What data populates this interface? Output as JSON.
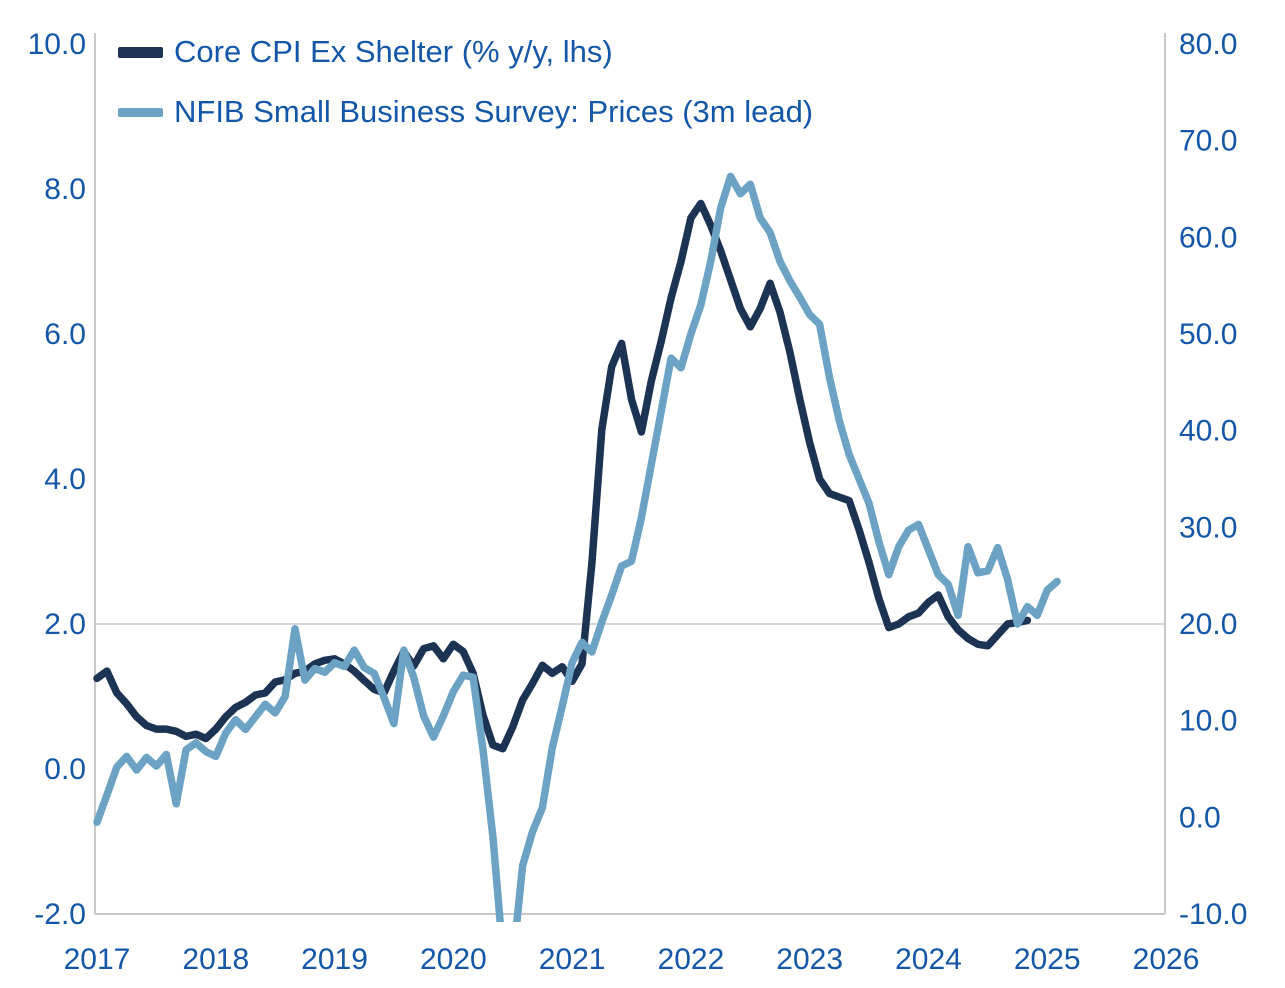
{
  "chart": {
    "background": "#ffffff",
    "legend": [
      {
        "label": "Core CPI Ex Shelter (% y/y, lhs)",
        "color": "#1d3354"
      },
      {
        "label": "NFIB Small Business Survey: Prices (3m lead)",
        "color": "#6ca3c4"
      }
    ],
    "text_color": "#1457a8",
    "grid_color": "#c8c8c8"
  },
  "chart_data": {
    "type": "line",
    "title": "",
    "xlabel": "",
    "ylabel_left": "Core CPI Ex Shelter (% y/y)",
    "ylabel_right": "NFIB Small Business Survey: Prices",
    "x_start": "2017-01",
    "x_freq": "monthly",
    "x_tick_labels": [
      "2017",
      "2018",
      "2019",
      "2020",
      "2021",
      "2022",
      "2023",
      "2024",
      "2025",
      "2026"
    ],
    "axes": {
      "left": {
        "min": -2,
        "max": 10,
        "tick_values": [
          10,
          8,
          6,
          4,
          2,
          0,
          -2
        ],
        "tick_labels": [
          "10.0",
          "8.0",
          "6.0",
          "4.0",
          "2.0",
          "0.0",
          "-2.0"
        ]
      },
      "right": {
        "min": -10,
        "max": 80,
        "tick_values": [
          80,
          70,
          60,
          50,
          40,
          30,
          20,
          10,
          0,
          -10
        ],
        "tick_labels": [
          "80.0",
          "70.0",
          "60.0",
          "50.0",
          "40.0",
          "30.0",
          "20.0",
          "10.0",
          "0.0",
          "-10.0"
        ]
      },
      "x": {
        "min_year": 2017,
        "max_year": 2026
      }
    },
    "grid": "single horizontal gridline at left 2.0 / right 20.0",
    "gridline_at_left_value": 2.0,
    "legend_position": "top-left",
    "series": [
      {
        "name": "Core CPI Ex Shelter (% y/y, lhs)",
        "axis": "left",
        "color": "#1d3354",
        "values": [
          1.25,
          1.35,
          1.05,
          0.9,
          0.72,
          0.6,
          0.55,
          0.55,
          0.52,
          0.45,
          0.48,
          0.42,
          0.55,
          0.72,
          0.85,
          0.92,
          1.02,
          1.05,
          1.2,
          1.23,
          1.32,
          1.35,
          1.45,
          1.5,
          1.52,
          1.45,
          1.35,
          1.22,
          1.1,
          1.05,
          1.35,
          1.62,
          1.42,
          1.66,
          1.7,
          1.52,
          1.72,
          1.62,
          1.32,
          0.74,
          0.33,
          0.28,
          0.58,
          0.95,
          1.18,
          1.43,
          1.32,
          1.41,
          1.21,
          1.45,
          2.84,
          4.68,
          5.55,
          5.87,
          5.1,
          4.65,
          5.35,
          5.9,
          6.5,
          7.0,
          7.6,
          7.8,
          7.5,
          7.15,
          6.75,
          6.35,
          6.1,
          6.35,
          6.7,
          6.3,
          5.75,
          5.1,
          4.5,
          4.0,
          3.8,
          3.75,
          3.7,
          3.3,
          2.85,
          2.35,
          1.95,
          2.0,
          2.1,
          2.15,
          2.3,
          2.4,
          2.1,
          1.92,
          1.8,
          1.72,
          1.7,
          1.85,
          2.0,
          2.02,
          2.05
        ]
      },
      {
        "name": "NFIB Small Business Survey: Prices (3m lead)",
        "axis": "right",
        "color": "#6ca3c4",
        "values": [
          -0.5,
          2.3,
          5.2,
          6.3,
          4.9,
          6.2,
          5.3,
          6.5,
          1.4,
          7.0,
          7.7,
          6.8,
          6.3,
          8.7,
          10.1,
          9.1,
          10.4,
          11.7,
          10.8,
          12.5,
          19.5,
          14.2,
          15.4,
          15.0,
          16.0,
          15.6,
          17.3,
          15.5,
          14.9,
          12.4,
          9.7,
          17.3,
          14.5,
          10.5,
          8.3,
          10.5,
          13.0,
          14.7,
          14.5,
          7.0,
          -2.0,
          -14.0,
          -15.0,
          -5.0,
          -1.5,
          1.0,
          7.2,
          11.5,
          16.0,
          18.1,
          17.1,
          20.2,
          23.0,
          26.0,
          26.5,
          31.0,
          36.5,
          42.0,
          47.5,
          46.5,
          50.0,
          53.0,
          57.5,
          63.0,
          66.3,
          64.5,
          65.5,
          62.0,
          60.5,
          57.5,
          55.5,
          53.8,
          52.0,
          51.0,
          45.5,
          41.0,
          37.5,
          35.0,
          32.5,
          28.5,
          25.1,
          28.0,
          29.7,
          30.3,
          27.7,
          25.1,
          24.1,
          20.9,
          28.0,
          25.3,
          25.5,
          27.9,
          24.6,
          20.0,
          21.8,
          20.9,
          23.5,
          24.4
        ]
      }
    ]
  }
}
